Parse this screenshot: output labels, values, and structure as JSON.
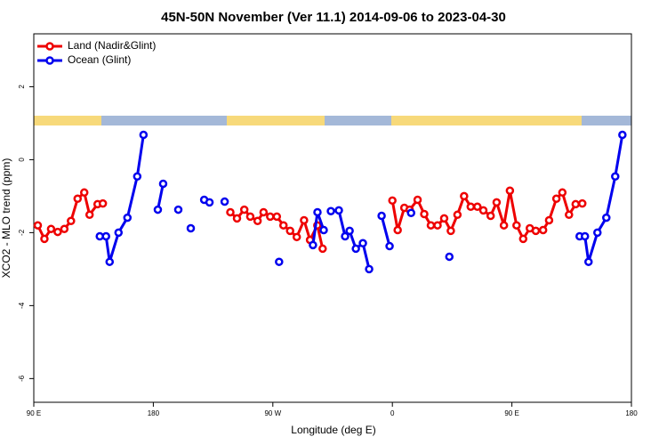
{
  "chart_data": {
    "type": "line",
    "title": "45N-50N November (Ver 11.1)   2014-09-06 to 2023-04-30",
    "x_label": "Longitude (deg E)",
    "y_label": "XCO2 - MLO trend (ppm)",
    "xlim": [
      90,
      540
    ],
    "ylim": [
      -6.65,
      3.45
    ],
    "xticks": [
      {
        "value": 90,
        "label": "90 E"
      },
      180,
      {
        "value": 270,
        "label": "90 W"
      },
      0,
      {
        "value": 450,
        "label": "90 E"
      },
      180
    ],
    "yticks": [
      -6,
      -4,
      -2,
      0,
      2
    ],
    "legend": "top-left",
    "series": [
      {
        "name": "Land (Nadir&Glint)",
        "color": "#ee0000",
        "x": [
          93,
          98,
          103,
          108,
          113,
          118,
          123,
          128,
          132,
          138,
          142,
          null,
          238,
          243,
          248.5,
          253,
          258.5,
          263,
          268,
          273,
          278,
          283,
          288,
          293.5,
          298,
          303.5,
          307.5,
          null,
          360,
          364,
          369,
          373,
          379,
          384,
          389,
          394,
          399,
          404,
          409,
          414,
          419,
          424,
          428.5,
          434,
          438.5,
          444,
          448.5,
          453.5,
          458.5,
          463.5,
          468,
          473.5,
          478,
          483.5,
          488,
          493,
          498,
          503
        ],
        "values": [
          -1.8,
          -2.17,
          -1.9,
          -1.98,
          -1.9,
          -1.68,
          -1.07,
          -0.9,
          -1.51,
          -1.22,
          -1.2,
          null,
          -1.44,
          -1.61,
          -1.37,
          -1.56,
          -1.68,
          -1.44,
          -1.56,
          -1.56,
          -1.8,
          -1.95,
          -2.12,
          -1.66,
          -2.2,
          -1.8,
          -2.44,
          null,
          -1.12,
          -1.93,
          -1.32,
          -1.37,
          -1.1,
          -1.49,
          -1.8,
          -1.8,
          -1.61,
          -1.95,
          -1.51,
          -1.0,
          -1.29,
          -1.29,
          -1.39,
          -1.54,
          -1.17,
          -1.8,
          -0.85,
          -1.8,
          -2.17,
          -1.88,
          -1.95,
          -1.93,
          -1.66,
          -1.07,
          -0.9,
          -1.51,
          -1.22,
          -1.2
        ]
      },
      {
        "name": "Ocean (Glint)",
        "color": "#0000ee",
        "x": [
          139.7,
          144.4,
          147.1,
          153.8,
          160.5,
          167.9,
          172.6,
          null,
          183.4,
          187.4,
          null,
          198.8,
          null,
          208.2,
          null,
          218.3,
          222.3,
          null,
          233.7,
          null,
          274.7,
          null,
          300.2,
          303.6,
          308.3,
          null,
          313.7,
          319.7,
          324.4,
          327.8,
          332.5,
          337.8,
          342.5,
          null,
          351.9,
          357.9,
          null,
          374.1,
          null,
          402.9,
          null,
          501,
          505,
          507.7,
          514.4,
          521.1,
          527.8,
          533.2
        ],
        "values": [
          -2.1,
          -2.1,
          -2.8,
          -2.0,
          -1.59,
          -0.46,
          0.68,
          null,
          -1.37,
          -0.66,
          null,
          -1.37,
          null,
          -1.88,
          null,
          -1.1,
          -1.17,
          null,
          -1.15,
          null,
          -2.8,
          null,
          -2.34,
          -1.44,
          -1.93,
          null,
          -1.41,
          -1.39,
          -2.1,
          -1.95,
          -2.44,
          -2.29,
          -3.0,
          null,
          -1.54,
          -2.37,
          null,
          -1.46,
          null,
          -2.66,
          null,
          -2.1,
          -2.1,
          -2.8,
          -2.0,
          -1.59,
          -0.46,
          0.68
        ]
      }
    ]
  }
}
